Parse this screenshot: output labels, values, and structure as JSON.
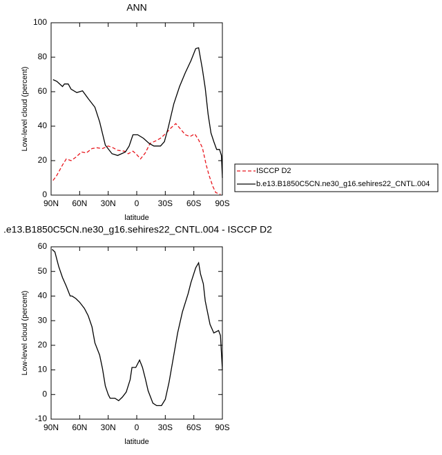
{
  "chart_data": [
    {
      "type": "line",
      "title": "ANN",
      "xlabel": "latitude",
      "ylabel": "Low-level cloud (percent)",
      "xlim": [
        90,
        -90
      ],
      "xticks": [
        {
          "value": 90,
          "label": "90N"
        },
        {
          "value": 60,
          "label": "60N"
        },
        {
          "value": 30,
          "label": "30N"
        },
        0,
        {
          "value": -30,
          "label": "30S"
        },
        {
          "value": -60,
          "label": "60S"
        },
        {
          "value": -90,
          "label": "90S"
        }
      ],
      "ylim": [
        0,
        100
      ],
      "yticks": [
        0,
        20,
        40,
        60,
        80,
        100
      ],
      "legend": "outside right",
      "series": [
        {
          "name": "ISCCP D2",
          "color": "#e8141b",
          "dash": true,
          "x": [
            88,
            84,
            78,
            74,
            69,
            64,
            58,
            53,
            47,
            42,
            36,
            30,
            25,
            20,
            13,
            9,
            4,
            0,
            -4,
            -9,
            -14,
            -20,
            -25,
            -30,
            -36,
            -41,
            -45,
            -51,
            -56,
            -61,
            -65,
            -69,
            -73,
            -76,
            -80,
            -83,
            -88
          ],
          "values": [
            8.5,
            11.5,
            17.5,
            21,
            20,
            22,
            25,
            24.5,
            27,
            27.5,
            27,
            28.5,
            27.5,
            26,
            25.5,
            24,
            25.5,
            23.5,
            21,
            24.5,
            30,
            31.5,
            33,
            35.5,
            39,
            41.5,
            39,
            35,
            34,
            35.5,
            32,
            27.5,
            17.5,
            11.5,
            5,
            1.5,
            0.5
          ]
        },
        {
          "name": "b.e13.B1850C5CN.ne30_g16.sehires22_CNTL.004",
          "color": "#000000",
          "dash": false,
          "x": [
            88,
            84,
            78,
            76,
            72,
            69,
            63,
            57,
            51,
            44,
            39,
            33,
            26,
            20,
            12,
            8,
            4,
            -1,
            -7,
            -13,
            -18,
            -25,
            -29,
            -33,
            -39,
            -45,
            -51,
            -57,
            -62,
            -65,
            -69,
            -72,
            -75,
            -78,
            -81,
            -84,
            -87,
            -89,
            -90
          ],
          "values": [
            67,
            66,
            63,
            64.5,
            64.5,
            61.5,
            59.5,
            60.5,
            56,
            51,
            42.5,
            29,
            24,
            23,
            25,
            28.5,
            35,
            35,
            33,
            30,
            28.5,
            28.5,
            31,
            39,
            53,
            63,
            71,
            78,
            85,
            85.5,
            73,
            62,
            47,
            36,
            31,
            26.5,
            26.5,
            23,
            10
          ]
        }
      ]
    },
    {
      "type": "line",
      "title": ".e13.B1850C5CN.ne30_g16.sehires22_CNTL.004 - ISCCP D2",
      "xlabel": "latitude",
      "ylabel": "Low-level cloud (percent)",
      "xlim": [
        90,
        -90
      ],
      "xticks": [
        {
          "value": 90,
          "label": "90N"
        },
        {
          "value": 60,
          "label": "60N"
        },
        {
          "value": 30,
          "label": "30N"
        },
        0,
        {
          "value": -30,
          "label": "30S"
        },
        {
          "value": -60,
          "label": "60S"
        },
        {
          "value": -90,
          "label": "90S"
        }
      ],
      "ylim": [
        -10,
        60
      ],
      "yticks": [
        -10,
        0,
        10,
        20,
        30,
        40,
        50,
        60
      ],
      "series": [
        {
          "color": "#000000",
          "dash": false,
          "x": [
            89,
            86,
            82,
            78,
            74,
            70,
            68,
            64,
            60,
            55,
            51,
            47,
            44,
            39,
            36,
            33,
            30,
            28,
            23,
            19,
            15,
            11,
            7,
            5,
            1,
            -3,
            -6,
            -9,
            -12,
            -17,
            -21,
            -26,
            -30,
            -34,
            -38,
            -43,
            -48,
            -54,
            -57,
            -62,
            -65,
            -67,
            -70,
            -72,
            -77,
            -81,
            -86,
            -88,
            -90
          ],
          "values": [
            59,
            57.9,
            52,
            47.5,
            44,
            40,
            40,
            39,
            37.5,
            35,
            32,
            27.5,
            21,
            16,
            10.5,
            3.5,
            0,
            -1.5,
            -1.5,
            -2.5,
            -1,
            1,
            6,
            11,
            11,
            14,
            11,
            6.5,
            1.5,
            -3.5,
            -4.5,
            -4.5,
            -2,
            5,
            14,
            25,
            33.5,
            41,
            45.5,
            51.5,
            53.5,
            49,
            45,
            38,
            28.5,
            25,
            26,
            24,
            10
          ]
        }
      ]
    }
  ]
}
